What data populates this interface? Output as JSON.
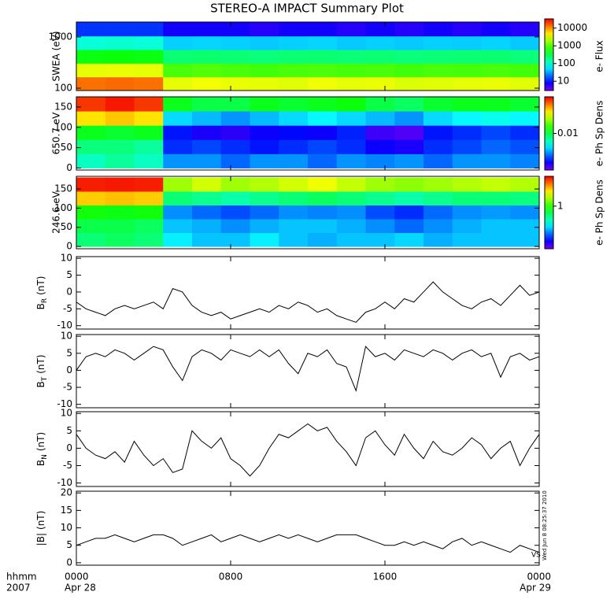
{
  "title": "STEREO-A IMPACT Summary Plot",
  "timestamp": "Wed Jun  8 08:25:37 2010",
  "corner_note": "VS",
  "x_axis": {
    "xlim": [
      0,
      24
    ],
    "xticks": [
      {
        "value": 0,
        "label": "0000"
      },
      {
        "value": 8,
        "label": "0800"
      },
      {
        "value": 16,
        "label": "1600"
      },
      {
        "value": 24,
        "label": "0000"
      }
    ],
    "xtick_dates": [
      {
        "value": 0,
        "label": "Apr 28"
      },
      {
        "value": 24,
        "label": "Apr 29"
      }
    ],
    "unit_label": "hhmm",
    "year_label": "2007",
    "x": [
      0,
      0.5,
      1,
      1.5,
      2,
      2.5,
      3,
      3.5,
      4,
      4.5,
      5,
      5.5,
      6,
      6.5,
      7,
      7.5,
      8,
      8.5,
      9,
      9.5,
      10,
      10.5,
      11,
      11.5,
      12,
      12.5,
      13,
      13.5,
      14,
      14.5,
      15,
      15.5,
      16,
      16.5,
      17,
      17.5,
      18,
      18.5,
      19,
      19.5,
      20,
      20.5,
      21,
      21.5,
      22,
      22.5,
      23,
      23.5,
      24
    ],
    "x_edges": [
      0,
      1.5,
      3,
      4.5,
      6,
      7.5,
      9,
      10.5,
      12,
      13.5,
      15,
      16.5,
      18,
      19.5,
      21,
      22.5,
      24
    ]
  },
  "chart_data": [
    {
      "type": "spectrogram",
      "ylabel": "SWEA (eV)",
      "ylog": true,
      "ylim": [
        90,
        1950
      ],
      "yticks": [
        100,
        1000
      ],
      "y_edges": [
        90,
        166,
        306,
        565,
        1043,
        1950
      ],
      "clim": [
        3,
        22000
      ],
      "clog": true,
      "cticks": [
        10,
        100,
        1000,
        10000
      ],
      "clabel": "e- Flux",
      "z": [
        [
          9000,
          9500,
          9000,
          2500,
          2800,
          2600,
          2500,
          2400,
          2700,
          2500,
          2600,
          2300,
          2400,
          2500,
          2600,
          2400
        ],
        [
          2500,
          2600,
          2500,
          700,
          750,
          700,
          650,
          700,
          720,
          680,
          700,
          650,
          700,
          680,
          700,
          660
        ],
        [
          400,
          420,
          400,
          180,
          190,
          180,
          170,
          180,
          185,
          175,
          180,
          170,
          175,
          180,
          185,
          170
        ],
        [
          80,
          85,
          80,
          40,
          42,
          40,
          38,
          40,
          42,
          38,
          40,
          38,
          40,
          39,
          41,
          38
        ],
        [
          12,
          12,
          12,
          7,
          7,
          7,
          6,
          7,
          7,
          6,
          7,
          6,
          7,
          6,
          7,
          6
        ]
      ]
    },
    {
      "type": "spectrogram",
      "ylabel": "650.7 eV",
      "ylim": [
        -5,
        175
      ],
      "yticks": [
        0,
        50,
        100,
        150
      ],
      "y_edges": [
        0,
        35,
        70,
        105,
        140,
        175
      ],
      "clim": [
        0.001,
        0.1
      ],
      "clog": true,
      "cticks": [
        0.01
      ],
      "clabel": "e- Ph Sp Dens",
      "z": [
        [
          0.006,
          0.007,
          0.006,
          0.003,
          0.003,
          0.0025,
          0.003,
          0.003,
          0.0025,
          0.003,
          0.0028,
          0.003,
          0.0025,
          0.003,
          0.003,
          0.0028
        ],
        [
          0.008,
          0.008,
          0.007,
          0.002,
          0.0022,
          0.002,
          0.0018,
          0.002,
          0.0022,
          0.002,
          0.0016,
          0.0015,
          0.002,
          0.0022,
          0.0025,
          0.0023
        ],
        [
          0.012,
          0.011,
          0.012,
          0.0018,
          0.0015,
          0.0014,
          0.0016,
          0.0017,
          0.0016,
          0.0019,
          0.0013,
          0.0012,
          0.0018,
          0.002,
          0.0022,
          0.002
        ],
        [
          0.04,
          0.045,
          0.04,
          0.004,
          0.0035,
          0.003,
          0.0035,
          0.004,
          0.0045,
          0.004,
          0.0035,
          0.003,
          0.004,
          0.0045,
          0.005,
          0.0045
        ],
        [
          0.08,
          0.09,
          0.08,
          0.012,
          0.01,
          0.01,
          0.012,
          0.011,
          0.012,
          0.013,
          0.01,
          0.009,
          0.011,
          0.012,
          0.012,
          0.011
        ]
      ]
    },
    {
      "type": "spectrogram",
      "ylabel": "246.6 eV",
      "ylim": [
        -6,
        183
      ],
      "yticks": [
        0,
        50,
        100,
        150
      ],
      "y_edges": [
        0,
        36,
        72,
        108,
        144,
        180
      ],
      "clim": [
        0.1,
        5
      ],
      "clog": true,
      "cticks": [
        1
      ],
      "clabel": "e- Ph Sp Dens",
      "z": [
        [
          0.6,
          0.65,
          0.6,
          0.35,
          0.3,
          0.3,
          0.35,
          0.3,
          0.28,
          0.3,
          0.3,
          0.32,
          0.28,
          0.3,
          0.3,
          0.3
        ],
        [
          0.7,
          0.7,
          0.65,
          0.3,
          0.28,
          0.25,
          0.28,
          0.3,
          0.3,
          0.28,
          0.25,
          0.22,
          0.25,
          0.28,
          0.3,
          0.3
        ],
        [
          0.9,
          0.85,
          0.9,
          0.25,
          0.22,
          0.2,
          0.22,
          0.25,
          0.24,
          0.25,
          0.2,
          0.18,
          0.22,
          0.25,
          0.26,
          0.25
        ],
        [
          2.5,
          2.6,
          2.5,
          0.6,
          0.55,
          0.5,
          0.55,
          0.6,
          0.65,
          0.6,
          0.55,
          0.5,
          0.55,
          0.6,
          0.6,
          0.58
        ],
        [
          4.5,
          4.6,
          4.5,
          1.5,
          1.8,
          1.5,
          1.6,
          1.8,
          2,
          1.7,
          1.5,
          1.4,
          1.5,
          1.6,
          1.7,
          1.6
        ]
      ]
    },
    {
      "type": "line",
      "ylabel": {
        "base": "B",
        "sub": "R",
        "unit": "(nT)"
      },
      "ylim": [
        -11,
        10.5
      ],
      "yticks": [
        -10,
        -5,
        0,
        5,
        10
      ],
      "color": "#000000",
      "values": [
        -3,
        -5,
        -6,
        -7,
        -5,
        -4,
        -5,
        -4,
        -3,
        -5,
        1,
        0,
        -4,
        -6,
        -7,
        -6,
        -8,
        -7,
        -6,
        -5,
        -6,
        -4,
        -5,
        -3,
        -4,
        -6,
        -5,
        -7,
        -8,
        -9,
        -6,
        -5,
        -3,
        -5,
        -2,
        -3,
        0,
        3,
        0,
        -2,
        -4,
        -5,
        -3,
        -2,
        -4,
        -1,
        2,
        -1,
        0
      ]
    },
    {
      "type": "line",
      "ylabel": {
        "base": "B",
        "sub": "T",
        "unit": "(nT)"
      },
      "ylim": [
        -11,
        10.5
      ],
      "yticks": [
        -10,
        -5,
        0,
        5,
        10
      ],
      "color": "#000000",
      "values": [
        0,
        4,
        5,
        4,
        6,
        5,
        3,
        5,
        7,
        6,
        1,
        -3,
        4,
        6,
        5,
        3,
        6,
        5,
        4,
        6,
        4,
        6,
        2,
        -1,
        5,
        4,
        6,
        2,
        1,
        -6,
        7,
        4,
        5,
        3,
        6,
        5,
        4,
        6,
        5,
        3,
        5,
        6,
        4,
        5,
        -2,
        4,
        5,
        3,
        4
      ]
    },
    {
      "type": "line",
      "ylabel": {
        "base": "B",
        "sub": "N",
        "unit": "(nT)"
      },
      "ylim": [
        -11,
        10.5
      ],
      "yticks": [
        -10,
        -5,
        0,
        5,
        10
      ],
      "color": "#000000",
      "values": [
        4,
        0,
        -2,
        -3,
        -1,
        -4,
        2,
        -2,
        -5,
        -3,
        -7,
        -6,
        5,
        2,
        0,
        3,
        -3,
        -5,
        -8,
        -5,
        0,
        4,
        3,
        5,
        7,
        5,
        6,
        2,
        -1,
        -5,
        3,
        5,
        1,
        -2,
        4,
        0,
        -3,
        2,
        -1,
        -2,
        0,
        3,
        1,
        -3,
        0,
        2,
        -5,
        0,
        4
      ]
    },
    {
      "type": "line",
      "ylabel": {
        "base": "|B|",
        "unit": "(nT)"
      },
      "ylim": [
        -0.7,
        20.5
      ],
      "yticks": [
        0,
        5,
        10,
        15,
        20
      ],
      "color": "#000000",
      "values": [
        5,
        6,
        7,
        7,
        8,
        7,
        6,
        7,
        8,
        8,
        7,
        5,
        6,
        7,
        8,
        6,
        7,
        8,
        7,
        6,
        7,
        8,
        7,
        8,
        7,
        6,
        7,
        8,
        8,
        8,
        7,
        6,
        5,
        5,
        6,
        5,
        6,
        5,
        4,
        6,
        7,
        5,
        6,
        5,
        4,
        3,
        5,
        4,
        3
      ]
    }
  ]
}
